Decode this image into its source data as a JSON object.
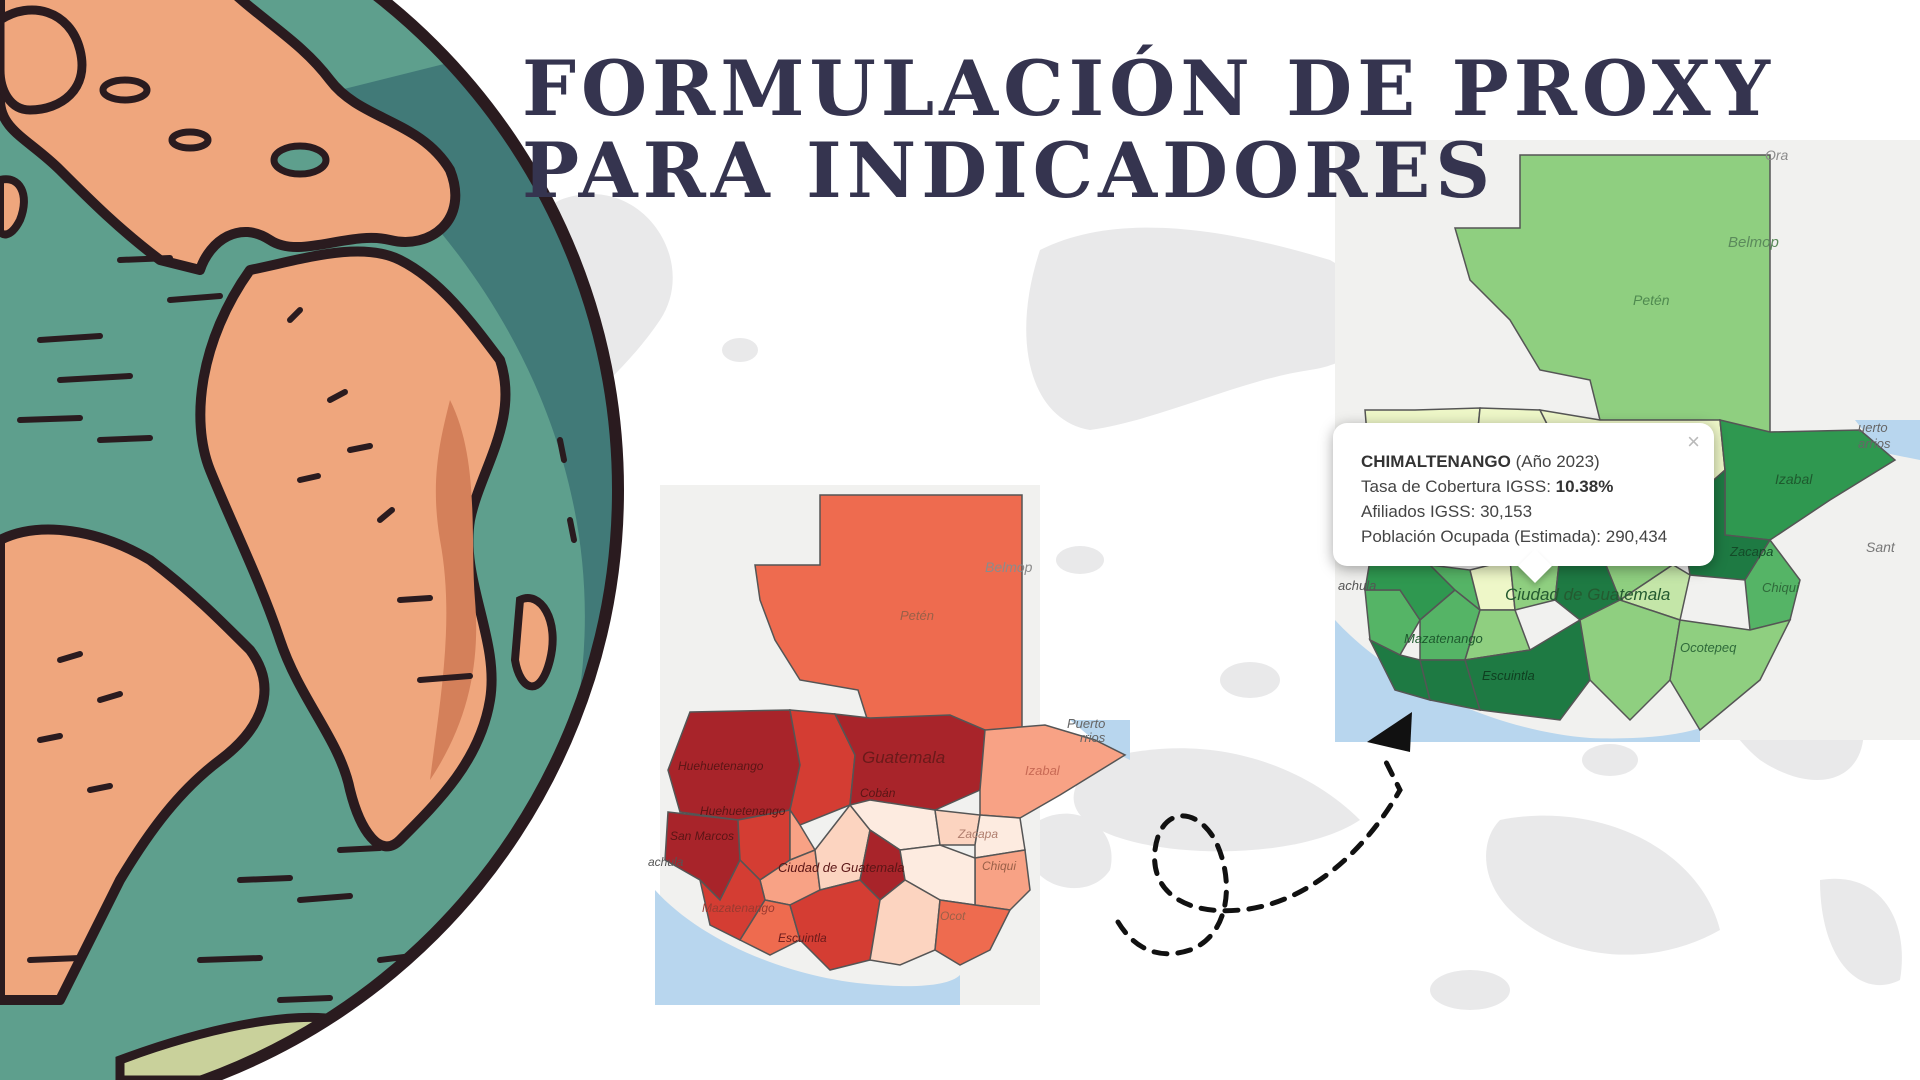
{
  "title": {
    "line1": "FORMULACIÓN DE PROXY",
    "line2": "PARA INDICADORES"
  },
  "popup": {
    "department": "CHIMALTENANGO",
    "year": "(Año 2023)",
    "rate_label": "Tasa de Cobertura IGSS:",
    "rate_value": "10.38%",
    "affiliates_label": "Afiliados IGSS:",
    "affiliates_value": "30,153",
    "population_label": "Población Ocupada (Estimada):",
    "population_value": "290,434",
    "close_symbol": "×"
  },
  "map_left": {
    "labels": {
      "belmopan": "Belmop",
      "peten": "Petén",
      "puerto": "Puerto",
      "barrios": "rrios",
      "izabal": "Izabal",
      "guatemala": "Guatemala",
      "huehuetenango": "Huehuetenango",
      "huehue2": "Huehuetenango",
      "coban": "Cobán",
      "zacapa": "Zacapa",
      "san_marcos": "San Marcos",
      "chiquimula": "Chiqui",
      "ciudad": "Ciudad de Guatemala",
      "mazatenango": "Mazatenango",
      "escuintla": "Escuintla",
      "ocotepeque": "Ocot",
      "tapachula": "achula"
    },
    "colors": {
      "dark": "#a8242a",
      "strong": "#d43d33",
      "mid": "#ee6b4f",
      "light": "#f8a285",
      "pale": "#fcd4c0",
      "palest": "#fdebe0"
    }
  },
  "map_right": {
    "labels": {
      "belmopan": "Belmop",
      "peten": "Petén",
      "puerto": "uerto",
      "barrios": "arrios",
      "izabal": "Izabal",
      "santo": "Sant",
      "zacapa": "Zacapa",
      "chiquimula": "Chiqui",
      "ciudad": "Ciudad de Guatemala",
      "mazatenango": "Mazatenango",
      "escuintla": "Escuintla",
      "ocotepeque": "Ocotepeq",
      "tapachula": "achula",
      "orange": "Ora"
    },
    "colors": {
      "darkest": "#1e7a43",
      "dark": "#2f9850",
      "mid": "#55b466",
      "light": "#8fcf80",
      "pale": "#c4e6a8",
      "palest": "#eef7c8"
    }
  },
  "globe_colors": {
    "ocean": "#5e9f8d",
    "ocean_shadow": "#417a78",
    "land": "#efa67d",
    "land_shadow": "#d4805a",
    "outline": "#2a1b1f"
  }
}
